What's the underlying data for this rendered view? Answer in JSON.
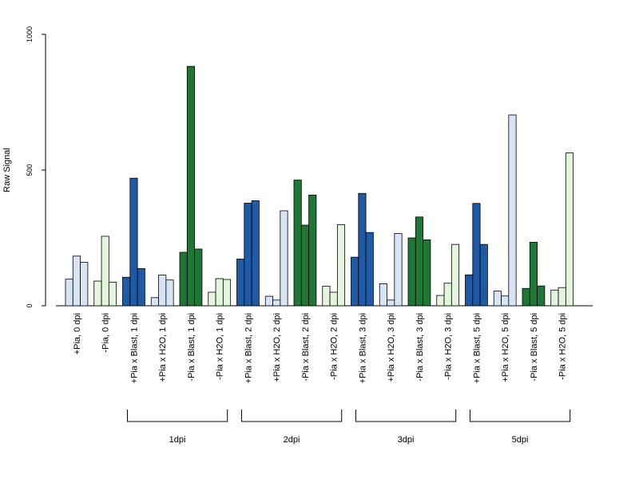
{
  "chart_data": {
    "type": "bar",
    "title": "",
    "xlabel": "",
    "ylabel": "Raw Signal",
    "ylim": [
      0,
      1000
    ],
    "yticks": [
      0,
      500,
      1000
    ],
    "grid": false,
    "legend": "none",
    "categories": [
      "+Pia, 0 dpi",
      "-Pia, 0 dpi",
      "+Pia x Blast, 1 dpi",
      "+Pia x H2O, 1 dpi",
      "-Pia x Blast, 1 dpi",
      "-Pia x H2O, 1 dpi",
      "+Pia x Blast, 2 dpi",
      "+Pia x H2O, 2 dpi",
      "-Pia x Blast, 2 dpi",
      "-Pia x H2O, 2 dpi",
      "+Pia x Blast, 3 dpi",
      "+Pia x H2O, 3 dpi",
      "-Pia x Blast, 3 dpi",
      "-Pia x H2O, 3 dpi",
      "+Pia x Blast, 5 dpi",
      "+Pia x H2O, 5 dpi",
      "-Pia x Blast, 5 dpi",
      "-Pia x H2O, 5 dpi"
    ],
    "bar_colors": [
      "#d6e4f5",
      "#e3f5dc",
      "#1f5aa6",
      "#d6e4f5",
      "#1e7734",
      "#e3f5dc",
      "#1f5aa6",
      "#d6e4f5",
      "#1e7734",
      "#e3f5dc",
      "#1f5aa6",
      "#d6e4f5",
      "#1e7734",
      "#e3f5dc",
      "#1f5aa6",
      "#d6e4f5",
      "#1e7734",
      "#e3f5dc"
    ],
    "values": [
      [
        98,
        183,
        160
      ],
      [
        91,
        256,
        87
      ],
      [
        105,
        470,
        137
      ],
      [
        30,
        113,
        95
      ],
      [
        197,
        882,
        209
      ],
      [
        50,
        100,
        97
      ],
      [
        172,
        378,
        387
      ],
      [
        35,
        21,
        350
      ],
      [
        463,
        297,
        408
      ],
      [
        72,
        50,
        299
      ],
      [
        179,
        414,
        270
      ],
      [
        81,
        21,
        266
      ],
      [
        250,
        327,
        243
      ],
      [
        38,
        83,
        226
      ],
      [
        114,
        377,
        226
      ],
      [
        54,
        36,
        703
      ],
      [
        64,
        234,
        73
      ],
      [
        58,
        67,
        563
      ]
    ],
    "groups": [
      {
        "label": "1dpi",
        "from": 2,
        "to": 5
      },
      {
        "label": "2dpi",
        "from": 6,
        "to": 9
      },
      {
        "label": "3dpi",
        "from": 10,
        "to": 13
      },
      {
        "label": "5dpi",
        "from": 14,
        "to": 17
      }
    ]
  }
}
